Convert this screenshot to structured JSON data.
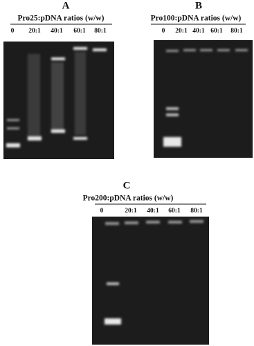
{
  "panels": [
    {
      "label": "A",
      "title": "Pro25:pDNA ratios (w/w)",
      "lanes": [
        "0",
        "20:1",
        "40:1",
        "60:1",
        "80:1"
      ]
    },
    {
      "label": "B",
      "title": "Pro100:pDNA ratios (w/w)",
      "lanes": [
        "0",
        "20:1",
        "40:1",
        "60:1",
        "80:1"
      ]
    },
    {
      "label": "C",
      "title": "Pro200:pDNA ratios (w/w)",
      "lanes": [
        "0",
        "20:1",
        "40:1",
        "60:1",
        "80:1"
      ]
    }
  ]
}
